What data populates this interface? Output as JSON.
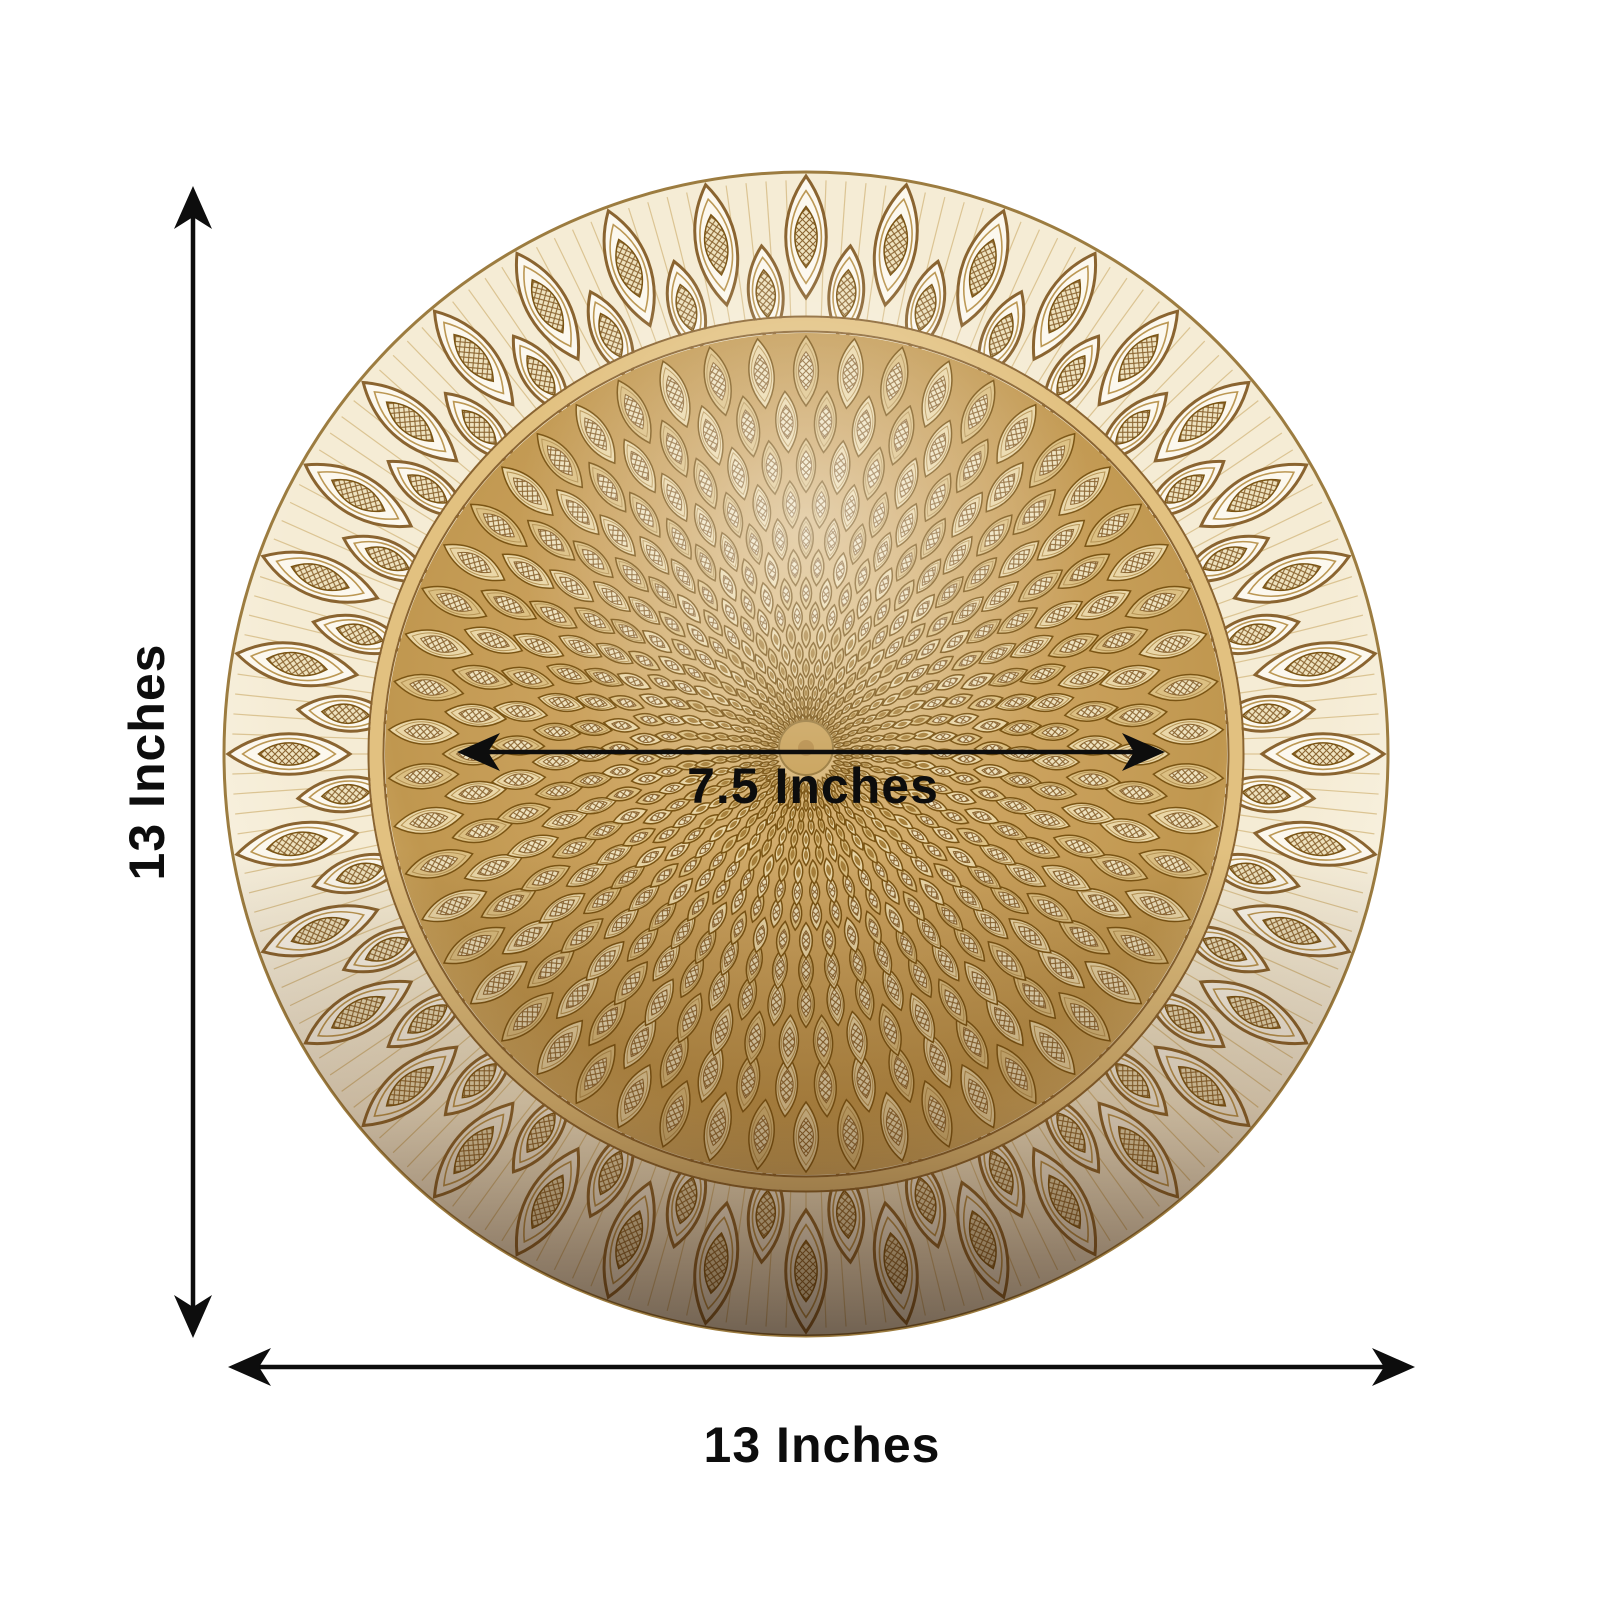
{
  "diagram": {
    "background": "#ffffff",
    "annotation_color": "#0d0d0d",
    "labels": {
      "outer_height": "13 Inches",
      "outer_width": "13 Inches",
      "inner_diameter": "7.5 Inches"
    },
    "plate": {
      "description": "Gold embossed peacock pattern round charger plate",
      "colors": {
        "gold_deep": "#7a5413",
        "gold_dark_edge": "#8a6430",
        "gold_mid": "#c49a52",
        "gold_light": "#ead7a8",
        "gold_pale": "#dcc083",
        "cream": "#f8f1de",
        "hatch_line": "#d9c08c",
        "band": "#e2c180",
        "center_disc": "#c9a25a"
      }
    }
  }
}
